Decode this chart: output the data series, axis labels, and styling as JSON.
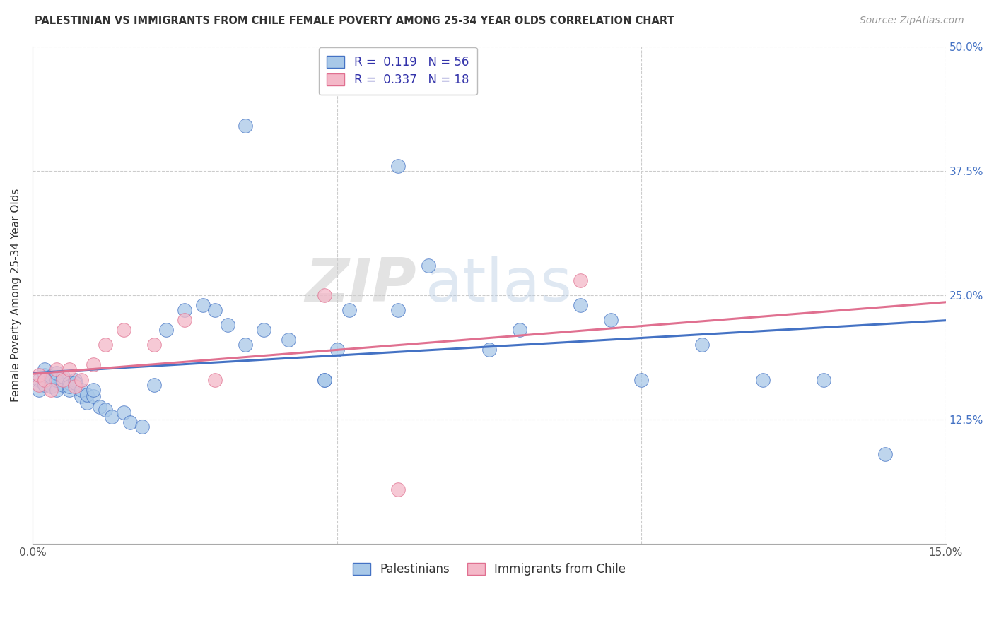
{
  "title": "PALESTINIAN VS IMMIGRANTS FROM CHILE FEMALE POVERTY AMONG 25-34 YEAR OLDS CORRELATION CHART",
  "source": "Source: ZipAtlas.com",
  "ylabel": "Female Poverty Among 25-34 Year Olds",
  "xlim": [
    0.0,
    0.15
  ],
  "ylim": [
    0.0,
    0.5
  ],
  "xticks": [
    0.0,
    0.05,
    0.1,
    0.15
  ],
  "yticks": [
    0.0,
    0.125,
    0.25,
    0.375,
    0.5
  ],
  "blue_color": "#a8c8e8",
  "pink_color": "#f4b8c8",
  "blue_line_color": "#4472c4",
  "pink_line_color": "#e07090",
  "watermark_zip": "ZIP",
  "watermark_atlas": "atlas",
  "pal_x": [
    0.001,
    0.001,
    0.002,
    0.002,
    0.002,
    0.003,
    0.003,
    0.003,
    0.004,
    0.004,
    0.004,
    0.005,
    0.005,
    0.006,
    0.006,
    0.006,
    0.007,
    0.007,
    0.008,
    0.008,
    0.009,
    0.009,
    0.01,
    0.01,
    0.011,
    0.012,
    0.013,
    0.015,
    0.016,
    0.018,
    0.02,
    0.022,
    0.025,
    0.028,
    0.03,
    0.032,
    0.035,
    0.038,
    0.042,
    0.048,
    0.052,
    0.06,
    0.065,
    0.035,
    0.048,
    0.06,
    0.075,
    0.08,
    0.09,
    0.095,
    0.1,
    0.11,
    0.12,
    0.13,
    0.14,
    0.05
  ],
  "pal_y": [
    0.165,
    0.155,
    0.16,
    0.17,
    0.175,
    0.162,
    0.158,
    0.168,
    0.155,
    0.165,
    0.172,
    0.16,
    0.168,
    0.155,
    0.162,
    0.158,
    0.165,
    0.162,
    0.148,
    0.155,
    0.142,
    0.15,
    0.148,
    0.155,
    0.138,
    0.135,
    0.128,
    0.132,
    0.122,
    0.118,
    0.16,
    0.215,
    0.235,
    0.24,
    0.235,
    0.22,
    0.42,
    0.215,
    0.205,
    0.165,
    0.235,
    0.38,
    0.28,
    0.2,
    0.165,
    0.235,
    0.195,
    0.215,
    0.24,
    0.225,
    0.165,
    0.2,
    0.165,
    0.165,
    0.09,
    0.195
  ],
  "chile_x": [
    0.001,
    0.001,
    0.002,
    0.003,
    0.004,
    0.005,
    0.006,
    0.007,
    0.008,
    0.01,
    0.012,
    0.015,
    0.02,
    0.025,
    0.03,
    0.048,
    0.09,
    0.06
  ],
  "chile_y": [
    0.16,
    0.17,
    0.165,
    0.155,
    0.175,
    0.165,
    0.175,
    0.158,
    0.165,
    0.18,
    0.2,
    0.215,
    0.2,
    0.225,
    0.165,
    0.25,
    0.265,
    0.055
  ]
}
